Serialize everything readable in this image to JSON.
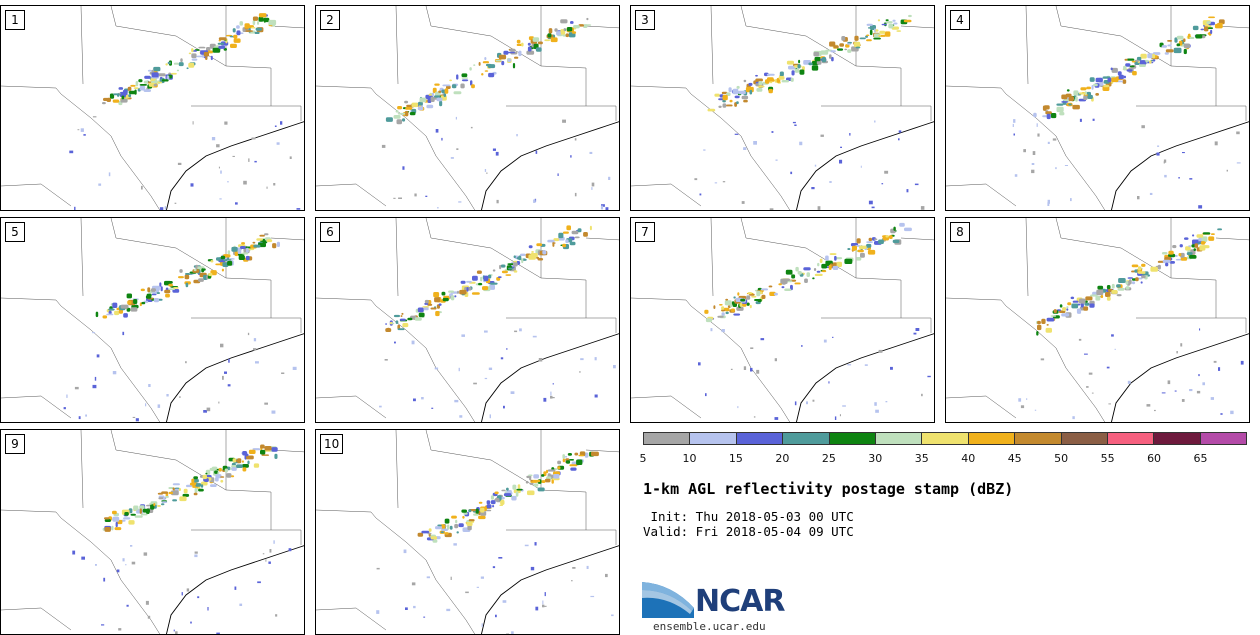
{
  "panels": [
    {
      "label": "1"
    },
    {
      "label": "2"
    },
    {
      "label": "3"
    },
    {
      "label": "4"
    },
    {
      "label": "5"
    },
    {
      "label": "6"
    },
    {
      "label": "7"
    },
    {
      "label": "8"
    },
    {
      "label": "9"
    },
    {
      "label": "10"
    }
  ],
  "colorbar": {
    "colors": [
      "#a6a6a6",
      "#b6c3ee",
      "#5a63d8",
      "#4f9b9b",
      "#0e8411",
      "#bfe0bd",
      "#efe26e",
      "#f0b11c",
      "#c3892e",
      "#8b5e45",
      "#f6607f",
      "#6e1a3d",
      "#b44ba8"
    ],
    "ticks": [
      "5",
      "10",
      "15",
      "20",
      "25",
      "30",
      "35",
      "40",
      "45",
      "50",
      "55",
      "60",
      "65"
    ]
  },
  "title": "1-km AGL reflectivity postage stamp (dBZ)",
  "init": " Init: Thu 2018-05-03 00 UTC",
  "valid": "Valid: Fri 2018-05-04 09 UTC",
  "logo": {
    "text": "NCAR",
    "url": "ensemble.ucar.edu"
  }
}
